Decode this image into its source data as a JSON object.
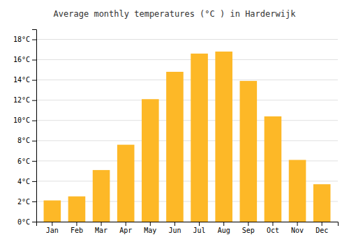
{
  "chart_data": {
    "type": "bar",
    "title": "Average monthly temperatures (°C ) in Harderwijk",
    "categories": [
      "Jan",
      "Feb",
      "Mar",
      "Apr",
      "May",
      "Jun",
      "Jul",
      "Aug",
      "Sep",
      "Oct",
      "Nov",
      "Dec"
    ],
    "values": [
      2.1,
      2.5,
      5.1,
      7.6,
      12.1,
      14.8,
      16.6,
      16.8,
      13.9,
      10.4,
      6.1,
      3.7
    ],
    "color": "#FDB827",
    "ylim": [
      0,
      19
    ],
    "yticks": [
      {
        "value": 0,
        "label": "0°C"
      },
      {
        "value": 2,
        "label": "2°C"
      },
      {
        "value": 4,
        "label": "4°C"
      },
      {
        "value": 6,
        "label": "6°C"
      },
      {
        "value": 8,
        "label": "8°C"
      },
      {
        "value": 10,
        "label": "10°C"
      },
      {
        "value": 12,
        "label": "12°C"
      },
      {
        "value": 14,
        "label": "14°C"
      },
      {
        "value": 16,
        "label": "16°C"
      },
      {
        "value": 18,
        "label": "18°C"
      }
    ],
    "grid": true
  }
}
